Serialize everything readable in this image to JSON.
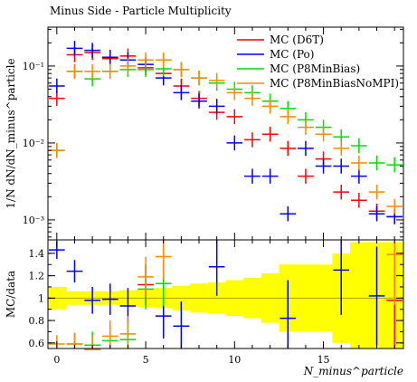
{
  "chart_data": [
    {
      "type": "scatter",
      "title": "Minus Side - Particle Multiplicity",
      "ylabel": "1/N dN/dN_minus^particle",
      "yscale": "log",
      "ylim": [
        0.00055,
        0.32
      ],
      "xlim": [
        -0.5,
        19.5
      ],
      "yticks": [
        {
          "value": 0.001,
          "label": "10⁻³"
        },
        {
          "value": 0.01,
          "label": "10⁻²"
        },
        {
          "value": 0.1,
          "label": "10⁻¹"
        }
      ],
      "legend": {
        "placement": "top-right"
      },
      "series": [
        {
          "name": "MC (D6T)",
          "color": "#ff0000",
          "x": [
            0,
            1,
            2,
            3,
            4,
            5,
            6,
            7,
            8,
            9,
            10,
            11,
            12,
            13,
            14,
            15,
            16,
            17,
            18,
            19
          ],
          "values": [
            0.038,
            0.14,
            0.15,
            0.125,
            0.135,
            0.095,
            0.08,
            0.055,
            0.038,
            0.025,
            0.022,
            0.011,
            0.013,
            0.0085,
            0.0037,
            0.0062,
            0.0023,
            0.0018,
            0.0013,
            0.0011
          ]
        },
        {
          "name": "MC (Po)",
          "color": "#0000ff",
          "x": [
            0,
            1,
            2,
            3,
            4,
            5,
            6,
            7,
            8,
            9,
            10,
            11,
            12,
            13,
            14,
            15,
            16,
            17,
            18,
            19
          ],
          "values": [
            0.055,
            0.17,
            0.16,
            0.13,
            0.12,
            0.105,
            0.07,
            0.045,
            0.035,
            0.03,
            0.01,
            0.0037,
            0.0037,
            0.0012,
            0.0085,
            0.005,
            0.005,
            0.0037,
            0.0012,
            0.0011
          ]
        },
        {
          "name": "MC (P8MinBias)",
          "color": "#00dd00",
          "x": [
            0,
            1,
            2,
            3,
            4,
            5,
            6,
            7,
            8,
            9,
            10,
            11,
            12,
            13,
            14,
            15,
            16,
            17,
            18,
            19
          ],
          "values": [
            0.008,
            0.085,
            0.068,
            0.085,
            0.09,
            0.09,
            0.092,
            0.09,
            0.07,
            0.06,
            0.05,
            0.045,
            0.035,
            0.028,
            0.02,
            0.016,
            0.012,
            0.0092,
            0.0055,
            0.0052
          ]
        },
        {
          "name": "MC (P8MinBiasNoMPI)",
          "color": "#ff8800",
          "x": [
            0,
            1,
            2,
            3,
            4,
            5,
            6,
            7,
            8,
            9,
            10,
            11,
            12,
            13,
            14,
            15,
            16,
            17,
            18,
            19
          ],
          "values": [
            0.008,
            0.085,
            0.085,
            0.085,
            0.1,
            0.12,
            0.12,
            0.09,
            0.07,
            0.065,
            0.045,
            0.038,
            0.03,
            0.022,
            0.016,
            0.013,
            0.0085,
            0.0055,
            0.0023,
            0.0015
          ]
        }
      ]
    },
    {
      "type": "scatter",
      "ylabel": "MC/data",
      "xlabel": "N_minus^particle",
      "ylim": [
        0.55,
        1.52
      ],
      "xlim": [
        -0.5,
        19.5
      ],
      "yticks": [
        0.6,
        0.8,
        1.0,
        1.2,
        1.4
      ],
      "ytick_labels": [
        "0.6",
        "0.8",
        "1",
        "1.2",
        "1.4"
      ],
      "xticks": [
        0,
        5,
        10,
        15
      ],
      "xtick_labels": [
        "0",
        "5",
        "10",
        "15"
      ],
      "reference_line": 1,
      "band_color": "#ffff00",
      "band": {
        "x": [
          0,
          1,
          2,
          3,
          4,
          5,
          6,
          7,
          8,
          9,
          10,
          11,
          12,
          13,
          14,
          15,
          16,
          17,
          18,
          19
        ],
        "half_width": [
          0.1,
          0.06,
          0.06,
          0.06,
          0.07,
          0.08,
          0.09,
          0.11,
          0.13,
          0.14,
          0.16,
          0.18,
          0.22,
          0.3,
          0.3,
          0.3,
          0.4,
          0.5,
          0.5,
          0.5
        ]
      },
      "series": [
        {
          "name": "MC (D6T)",
          "color": "#ff0000",
          "x": [
            5,
            19
          ],
          "values": [
            1.12,
            0.98
          ]
        },
        {
          "name": "MC (Po)",
          "color": "#0000ff",
          "x": [
            0,
            1,
            2,
            3,
            4,
            6,
            7,
            9,
            13,
            16,
            18
          ],
          "values": [
            1.43,
            1.24,
            0.98,
            0.99,
            0.93,
            0.84,
            0.75,
            1.28,
            0.82,
            1.25,
            1.02
          ]
        },
        {
          "name": "MC (P8MinBias)",
          "color": "#00dd00",
          "x": [
            1,
            2,
            3,
            4,
            5,
            6
          ],
          "values": [
            0.59,
            0.58,
            0.62,
            0.63,
            1.08,
            1.13
          ]
        },
        {
          "name": "MC (P8MinBiasNoMPI)",
          "color": "#ff8800",
          "x": [
            0,
            1,
            2,
            3,
            4,
            5,
            6,
            19
          ],
          "values": [
            0.59,
            0.59,
            0.54,
            0.66,
            0.68,
            1.19,
            1.37,
            1.39
          ]
        }
      ]
    }
  ]
}
